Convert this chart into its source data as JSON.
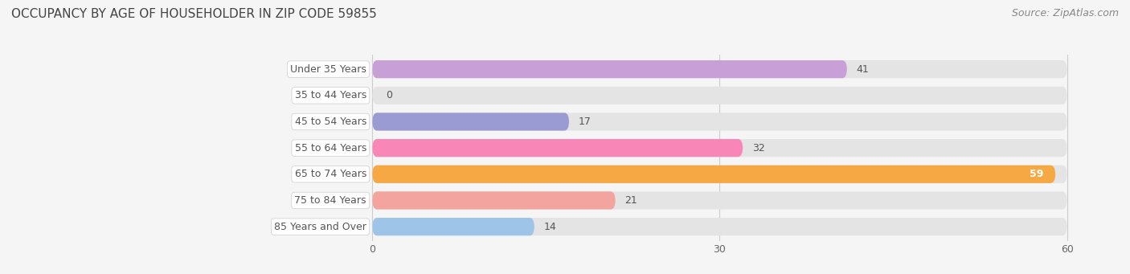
{
  "title": "OCCUPANCY BY AGE OF HOUSEHOLDER IN ZIP CODE 59855",
  "source": "Source: ZipAtlas.com",
  "categories": [
    "Under 35 Years",
    "35 to 44 Years",
    "45 to 54 Years",
    "55 to 64 Years",
    "65 to 74 Years",
    "75 to 84 Years",
    "85 Years and Over"
  ],
  "values": [
    41,
    0,
    17,
    32,
    59,
    21,
    14
  ],
  "bar_colors": [
    "#c99fd8",
    "#6ecfcf",
    "#9b9bd4",
    "#f887b8",
    "#f5a843",
    "#f4a49e",
    "#9ec5e8"
  ],
  "xlim_data": [
    0,
    60
  ],
  "xticks": [
    0,
    30,
    60
  ],
  "background_color": "#f5f5f5",
  "bar_bg_color": "#e4e4e4",
  "title_fontsize": 11,
  "label_fontsize": 9,
  "value_fontsize": 9,
  "source_fontsize": 9,
  "bar_height": 0.68
}
